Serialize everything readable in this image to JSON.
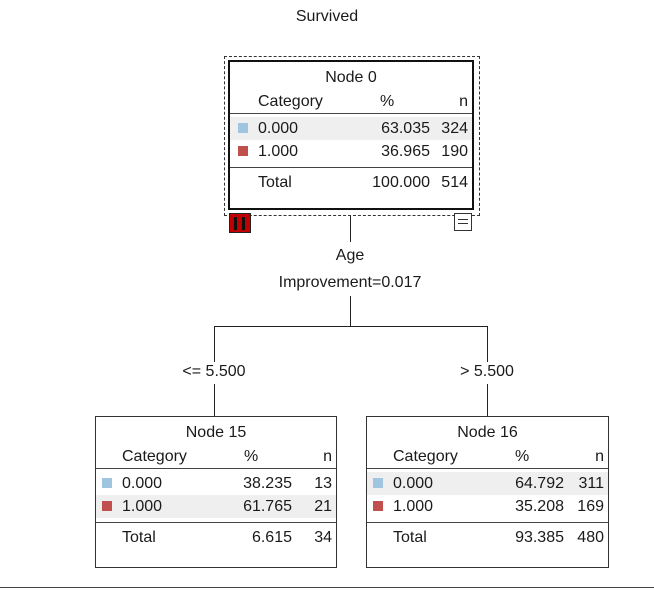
{
  "title": "Survived",
  "colors": {
    "category_0": "#9fc5e0",
    "category_1": "#c0504d",
    "collapse_icon": "#c00000"
  },
  "nodes": {
    "root": {
      "title": "Node 0",
      "header": {
        "category": "Category",
        "pct": "%",
        "n": "n"
      },
      "rows": [
        {
          "category": "0.000",
          "pct": "63.035",
          "n": "324"
        },
        {
          "category": "1.000",
          "pct": "36.965",
          "n": "190"
        }
      ],
      "total": {
        "label": "Total",
        "pct": "100.000",
        "n": "514"
      }
    },
    "left": {
      "title": "Node 15",
      "header": {
        "category": "Category",
        "pct": "%",
        "n": "n"
      },
      "rows": [
        {
          "category": "0.000",
          "pct": "38.235",
          "n": "13"
        },
        {
          "category": "1.000",
          "pct": "61.765",
          "n": "21"
        }
      ],
      "total": {
        "label": "Total",
        "pct": "6.615",
        "n": "34"
      }
    },
    "right": {
      "title": "Node 16",
      "header": {
        "category": "Category",
        "pct": "%",
        "n": "n"
      },
      "rows": [
        {
          "category": "0.000",
          "pct": "64.792",
          "n": "311"
        },
        {
          "category": "1.000",
          "pct": "35.208",
          "n": "169"
        }
      ],
      "total": {
        "label": "Total",
        "pct": "93.385",
        "n": "480"
      }
    }
  },
  "split": {
    "variable": "Age",
    "improvement": "Improvement=0.017"
  },
  "edges": {
    "left": "<= 5.500",
    "right": "> 5.500"
  },
  "icons": {
    "collapse": "bar-chart-collapse-icon",
    "toggle": "table-toggle-icon"
  }
}
